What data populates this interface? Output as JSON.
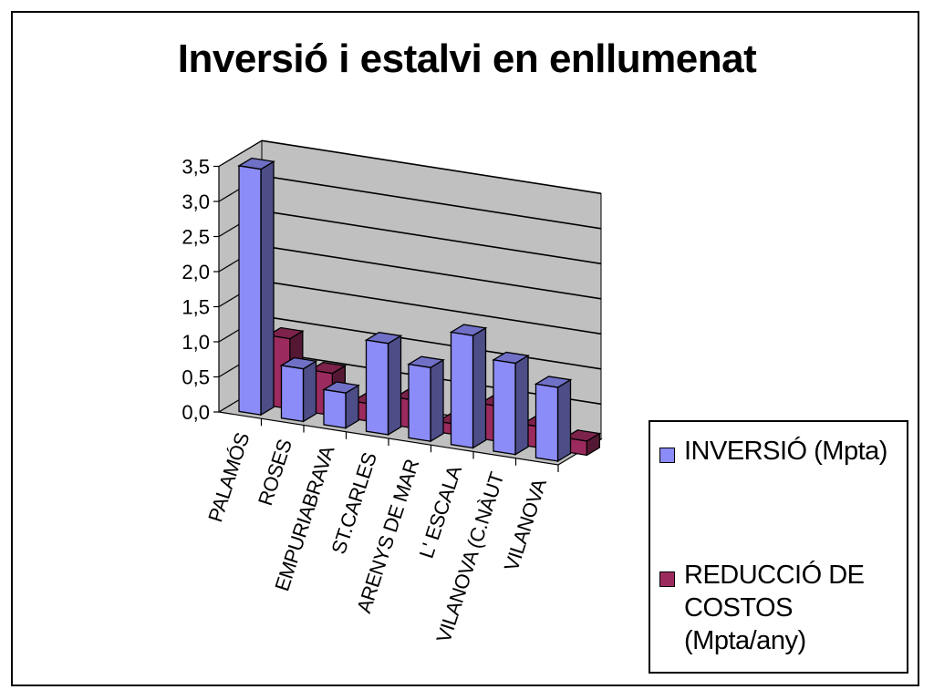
{
  "chart_data": {
    "type": "bar",
    "title": "Inversió i estalvi en enllumenat",
    "categories": [
      "PALAMÓS",
      "ROSES",
      "EMPURIABRAVA",
      "ST.CARLES",
      "ARENYS DE MAR",
      "L' ESCALA",
      "VILANOVA (C.NÀUT",
      "VILANOVA"
    ],
    "series": [
      {
        "name": "INVERSIÓ (Mpta)",
        "color": "#8c8cf8",
        "values": [
          3.5,
          0.75,
          0.5,
          1.3,
          1.05,
          1.6,
          1.3,
          1.05
        ]
      },
      {
        "name": "REDUCCIÓ DE COSTOS (Mpta/any)",
        "color": "#9b2b5e",
        "values": [
          1.0,
          0.6,
          0.25,
          0.4,
          0.15,
          0.5,
          0.3,
          0.2
        ]
      }
    ],
    "ylim": [
      0,
      3.5
    ],
    "yticks": [
      "0,0",
      "0,5",
      "1,0",
      "1,5",
      "2,0",
      "2,5",
      "3,0",
      "3,5"
    ],
    "grid": true,
    "legend_position": "right"
  },
  "colors": {
    "wall": "#c0c0c0",
    "floor": "#c0c0c0",
    "grid": "#000000"
  }
}
